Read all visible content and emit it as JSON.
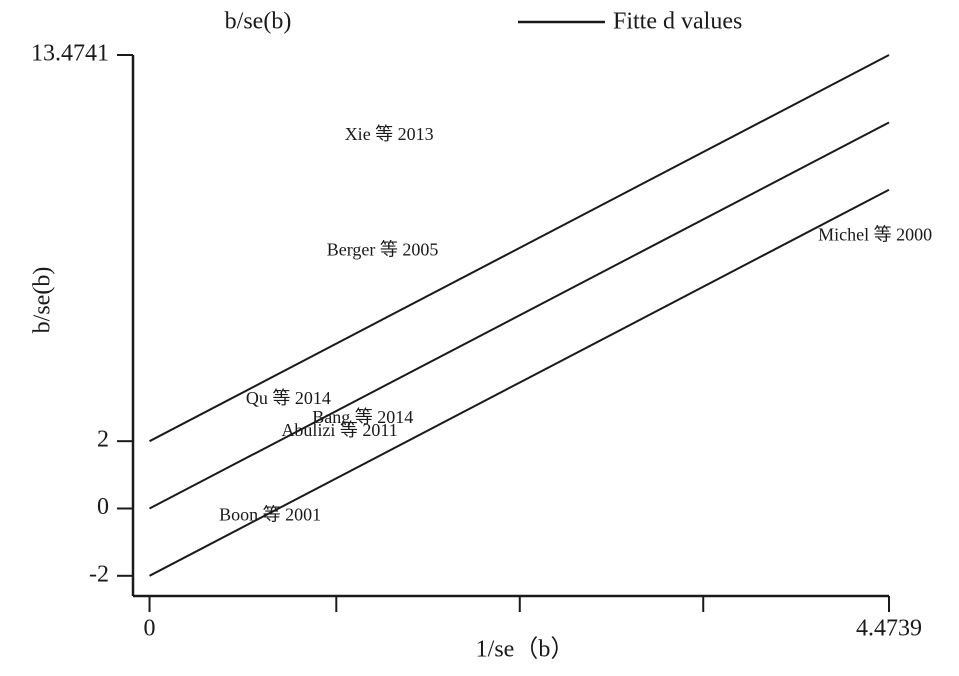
{
  "chart_data": {
    "type": "line",
    "title": "b/se(b)",
    "y_label": "b/se(b)",
    "x_label": "1/se（b）",
    "x": [
      0,
      4.4739
    ],
    "series": [
      {
        "name": "Fitte d values",
        "color": "#1a1a1a",
        "values": [
          0,
          11.47
        ]
      },
      {
        "color": "#1a1a1a",
        "values": [
          2,
          13.4741
        ]
      },
      {
        "color": "#1a1a1a",
        "values": [
          -2,
          9.47
        ]
      }
    ],
    "xlim": [
      -0.1,
      4.4739
    ],
    "ylim": [
      -2.6,
      13.4741
    ],
    "xticks": [
      0,
      4.4739
    ],
    "minor_xticks": [
      1.13,
      2.24,
      3.35
    ],
    "yticks": [
      -2,
      0,
      2,
      13.4741
    ],
    "annotations": [
      {
        "text": "Xie 等 2013",
        "x": 1.45,
        "y": 11.07
      },
      {
        "text": "Berger 等 2005",
        "x": 1.41,
        "y": 7.64
      },
      {
        "text": "Michel 等 2000",
        "x": 4.39,
        "y": 8.09
      },
      {
        "text": "Qu 等 2014",
        "x": 0.84,
        "y": 3.22
      },
      {
        "text": "Bang 等 2014",
        "x": 1.29,
        "y": 2.66
      },
      {
        "text": "Abulizi 等 2011",
        "x": 1.15,
        "y": 2.27
      },
      {
        "text": "Boon 等 2001",
        "x": 0.73,
        "y": -0.24
      }
    ],
    "legend": "top-right"
  }
}
